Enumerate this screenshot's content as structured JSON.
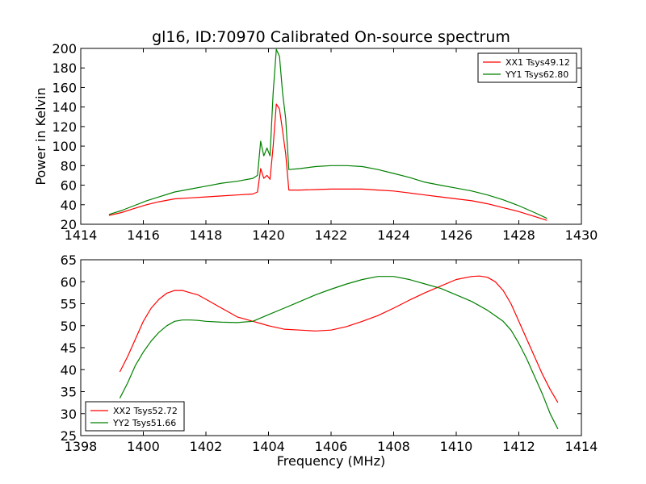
{
  "chart_data": [
    {
      "type": "line",
      "title": "gl16, ID:70970 Calibrated On-source spectrum",
      "xlabel": "",
      "ylabel": "Power in Kelvin",
      "xlim": [
        1414,
        1430
      ],
      "ylim": [
        20,
        200
      ],
      "xticks": [
        1414,
        1416,
        1418,
        1420,
        1422,
        1424,
        1426,
        1428,
        1430
      ],
      "yticks": [
        20,
        40,
        60,
        80,
        100,
        120,
        140,
        160,
        180,
        200
      ],
      "grid": false,
      "legend_position": "top-right",
      "series": [
        {
          "name": "XX1 Tsys49.12",
          "color": "#ff0000",
          "points": [
            [
              1414.9,
              29
            ],
            [
              1415.3,
              32
            ],
            [
              1415.7,
              36
            ],
            [
              1416.1,
              40
            ],
            [
              1416.5,
              43
            ],
            [
              1417.0,
              46
            ],
            [
              1417.5,
              47
            ],
            [
              1418.0,
              48
            ],
            [
              1418.5,
              49
            ],
            [
              1419.0,
              50
            ],
            [
              1419.5,
              51
            ],
            [
              1419.65,
              53
            ],
            [
              1419.75,
              77
            ],
            [
              1419.85,
              67
            ],
            [
              1419.95,
              70
            ],
            [
              1420.05,
              66
            ],
            [
              1420.15,
              100
            ],
            [
              1420.25,
              143
            ],
            [
              1420.35,
              138
            ],
            [
              1420.45,
              116
            ],
            [
              1420.55,
              92
            ],
            [
              1420.65,
              55
            ],
            [
              1421.0,
              55
            ],
            [
              1421.5,
              55.5
            ],
            [
              1422.0,
              56
            ],
            [
              1422.5,
              56
            ],
            [
              1423.0,
              56
            ],
            [
              1423.5,
              55
            ],
            [
              1424.0,
              54
            ],
            [
              1424.5,
              52
            ],
            [
              1425.0,
              50
            ],
            [
              1425.5,
              48
            ],
            [
              1426.0,
              46
            ],
            [
              1426.5,
              44
            ],
            [
              1427.0,
              41
            ],
            [
              1427.5,
              37
            ],
            [
              1428.0,
              33
            ],
            [
              1428.5,
              28
            ],
            [
              1428.9,
              24
            ]
          ]
        },
        {
          "name": "YY1 Tsys62.80",
          "color": "#008000",
          "points": [
            [
              1414.9,
              30
            ],
            [
              1415.3,
              34
            ],
            [
              1415.7,
              39
            ],
            [
              1416.1,
              44
            ],
            [
              1416.5,
              48
            ],
            [
              1417.0,
              53
            ],
            [
              1417.5,
              56
            ],
            [
              1418.0,
              59
            ],
            [
              1418.5,
              62
            ],
            [
              1419.0,
              64
            ],
            [
              1419.5,
              67
            ],
            [
              1419.65,
              70
            ],
            [
              1419.75,
              105
            ],
            [
              1419.85,
              90
            ],
            [
              1419.95,
              98
            ],
            [
              1420.05,
              90
            ],
            [
              1420.15,
              155
            ],
            [
              1420.25,
              199
            ],
            [
              1420.35,
              192
            ],
            [
              1420.45,
              155
            ],
            [
              1420.55,
              128
            ],
            [
              1420.65,
              76
            ],
            [
              1421.0,
              77
            ],
            [
              1421.5,
              79
            ],
            [
              1422.0,
              80
            ],
            [
              1422.5,
              80
            ],
            [
              1423.0,
              79
            ],
            [
              1423.5,
              76
            ],
            [
              1424.0,
              72
            ],
            [
              1424.5,
              68
            ],
            [
              1425.0,
              63
            ],
            [
              1425.5,
              60
            ],
            [
              1426.0,
              57
            ],
            [
              1426.5,
              54
            ],
            [
              1427.0,
              50
            ],
            [
              1427.5,
              45
            ],
            [
              1428.0,
              39
            ],
            [
              1428.5,
              32
            ],
            [
              1428.9,
              26
            ]
          ]
        }
      ]
    },
    {
      "type": "line",
      "title": "",
      "xlabel": "Frequency (MHz)",
      "ylabel": "",
      "xlim": [
        1398,
        1414
      ],
      "ylim": [
        25,
        65
      ],
      "xticks": [
        1398,
        1400,
        1402,
        1404,
        1406,
        1408,
        1410,
        1412,
        1414
      ],
      "yticks": [
        25,
        30,
        35,
        40,
        45,
        50,
        55,
        60,
        65
      ],
      "grid": false,
      "legend_position": "bottom-left",
      "series": [
        {
          "name": "XX2 Tsys52.72",
          "color": "#ff0000",
          "points": [
            [
              1399.25,
              39.5
            ],
            [
              1399.5,
              43
            ],
            [
              1399.75,
              47
            ],
            [
              1400.0,
              51
            ],
            [
              1400.25,
              54
            ],
            [
              1400.5,
              56
            ],
            [
              1400.75,
              57.4
            ],
            [
              1401.0,
              58
            ],
            [
              1401.25,
              58
            ],
            [
              1401.5,
              57.5
            ],
            [
              1401.75,
              57
            ],
            [
              1402.0,
              56
            ],
            [
              1402.25,
              55
            ],
            [
              1402.5,
              54
            ],
            [
              1402.75,
              53
            ],
            [
              1403.0,
              52
            ],
            [
              1403.25,
              51.5
            ],
            [
              1403.5,
              51
            ],
            [
              1403.75,
              50.5
            ],
            [
              1404.0,
              50
            ],
            [
              1404.5,
              49.2
            ],
            [
              1405.0,
              49
            ],
            [
              1405.5,
              48.8
            ],
            [
              1406.0,
              49
            ],
            [
              1406.5,
              49.8
            ],
            [
              1407.0,
              51
            ],
            [
              1407.5,
              52.3
            ],
            [
              1408.0,
              54
            ],
            [
              1408.5,
              55.8
            ],
            [
              1409.0,
              57.5
            ],
            [
              1409.5,
              59
            ],
            [
              1410.0,
              60.5
            ],
            [
              1410.5,
              61.2
            ],
            [
              1410.75,
              61.3
            ],
            [
              1411.0,
              61
            ],
            [
              1411.25,
              60
            ],
            [
              1411.5,
              58
            ],
            [
              1411.75,
              55
            ],
            [
              1412.0,
              51
            ],
            [
              1412.25,
              47
            ],
            [
              1412.5,
              43
            ],
            [
              1412.75,
              39
            ],
            [
              1413.0,
              35.5
            ],
            [
              1413.25,
              32.5
            ]
          ]
        },
        {
          "name": "YY2 Tsys51.66",
          "color": "#008000",
          "points": [
            [
              1399.25,
              33.5
            ],
            [
              1399.5,
              37
            ],
            [
              1399.75,
              41
            ],
            [
              1400.0,
              44
            ],
            [
              1400.25,
              46.5
            ],
            [
              1400.5,
              48.5
            ],
            [
              1400.75,
              50
            ],
            [
              1401.0,
              51
            ],
            [
              1401.25,
              51.3
            ],
            [
              1401.5,
              51.3
            ],
            [
              1401.75,
              51.2
            ],
            [
              1402.0,
              51
            ],
            [
              1402.5,
              50.8
            ],
            [
              1403.0,
              50.7
            ],
            [
              1403.5,
              51
            ],
            [
              1404.0,
              52.5
            ],
            [
              1404.5,
              54
            ],
            [
              1405.0,
              55.5
            ],
            [
              1405.5,
              57
            ],
            [
              1406.0,
              58.3
            ],
            [
              1406.5,
              59.5
            ],
            [
              1407.0,
              60.5
            ],
            [
              1407.5,
              61.2
            ],
            [
              1408.0,
              61.2
            ],
            [
              1408.5,
              60.5
            ],
            [
              1409.0,
              59.5
            ],
            [
              1409.5,
              58.5
            ],
            [
              1410.0,
              57
            ],
            [
              1410.5,
              55.5
            ],
            [
              1411.0,
              53.5
            ],
            [
              1411.5,
              51
            ],
            [
              1411.75,
              49
            ],
            [
              1412.0,
              46
            ],
            [
              1412.25,
              42.5
            ],
            [
              1412.5,
              38.5
            ],
            [
              1412.75,
              34.5
            ],
            [
              1413.0,
              30
            ],
            [
              1413.25,
              26.5
            ]
          ]
        }
      ]
    }
  ]
}
